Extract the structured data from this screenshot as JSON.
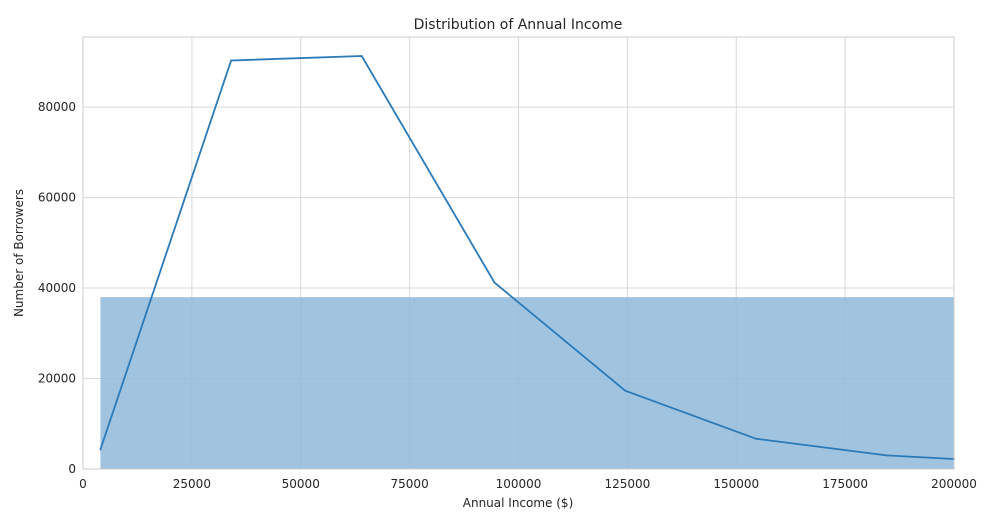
{
  "chart_data": {
    "type": "area",
    "title": "Distribution of Annual Income",
    "xlabel": "Annual Income ($)",
    "ylabel": "Number of Borrowers",
    "xlim": [
      0,
      200000
    ],
    "ylim": [
      0,
      95500
    ],
    "grid": true,
    "legend": "none",
    "x_ticks": [
      "0",
      "25000",
      "50000",
      "75000",
      "100000",
      "125000",
      "150000",
      "175000",
      "200000"
    ],
    "x_tick_values": [
      0,
      25000,
      50000,
      75000,
      100000,
      125000,
      150000,
      175000,
      200000
    ],
    "y_ticks": [
      "0",
      "20000",
      "40000",
      "60000",
      "80000"
    ],
    "y_tick_values": [
      0,
      20000,
      40000,
      60000,
      80000
    ],
    "area": {
      "x_start": 4000,
      "x_end": 200000,
      "value": 38000
    },
    "line": {
      "x": [
        4000,
        34000,
        64000,
        94500,
        124500,
        154500,
        184500,
        200000
      ],
      "y": [
        4300,
        90300,
        91300,
        41200,
        17300,
        6700,
        3000,
        2200
      ]
    },
    "colors": {
      "line": "#2a7ab9",
      "area": "#8fb9da",
      "grid": "#d9d9d9",
      "frame": "#cccccc"
    }
  }
}
